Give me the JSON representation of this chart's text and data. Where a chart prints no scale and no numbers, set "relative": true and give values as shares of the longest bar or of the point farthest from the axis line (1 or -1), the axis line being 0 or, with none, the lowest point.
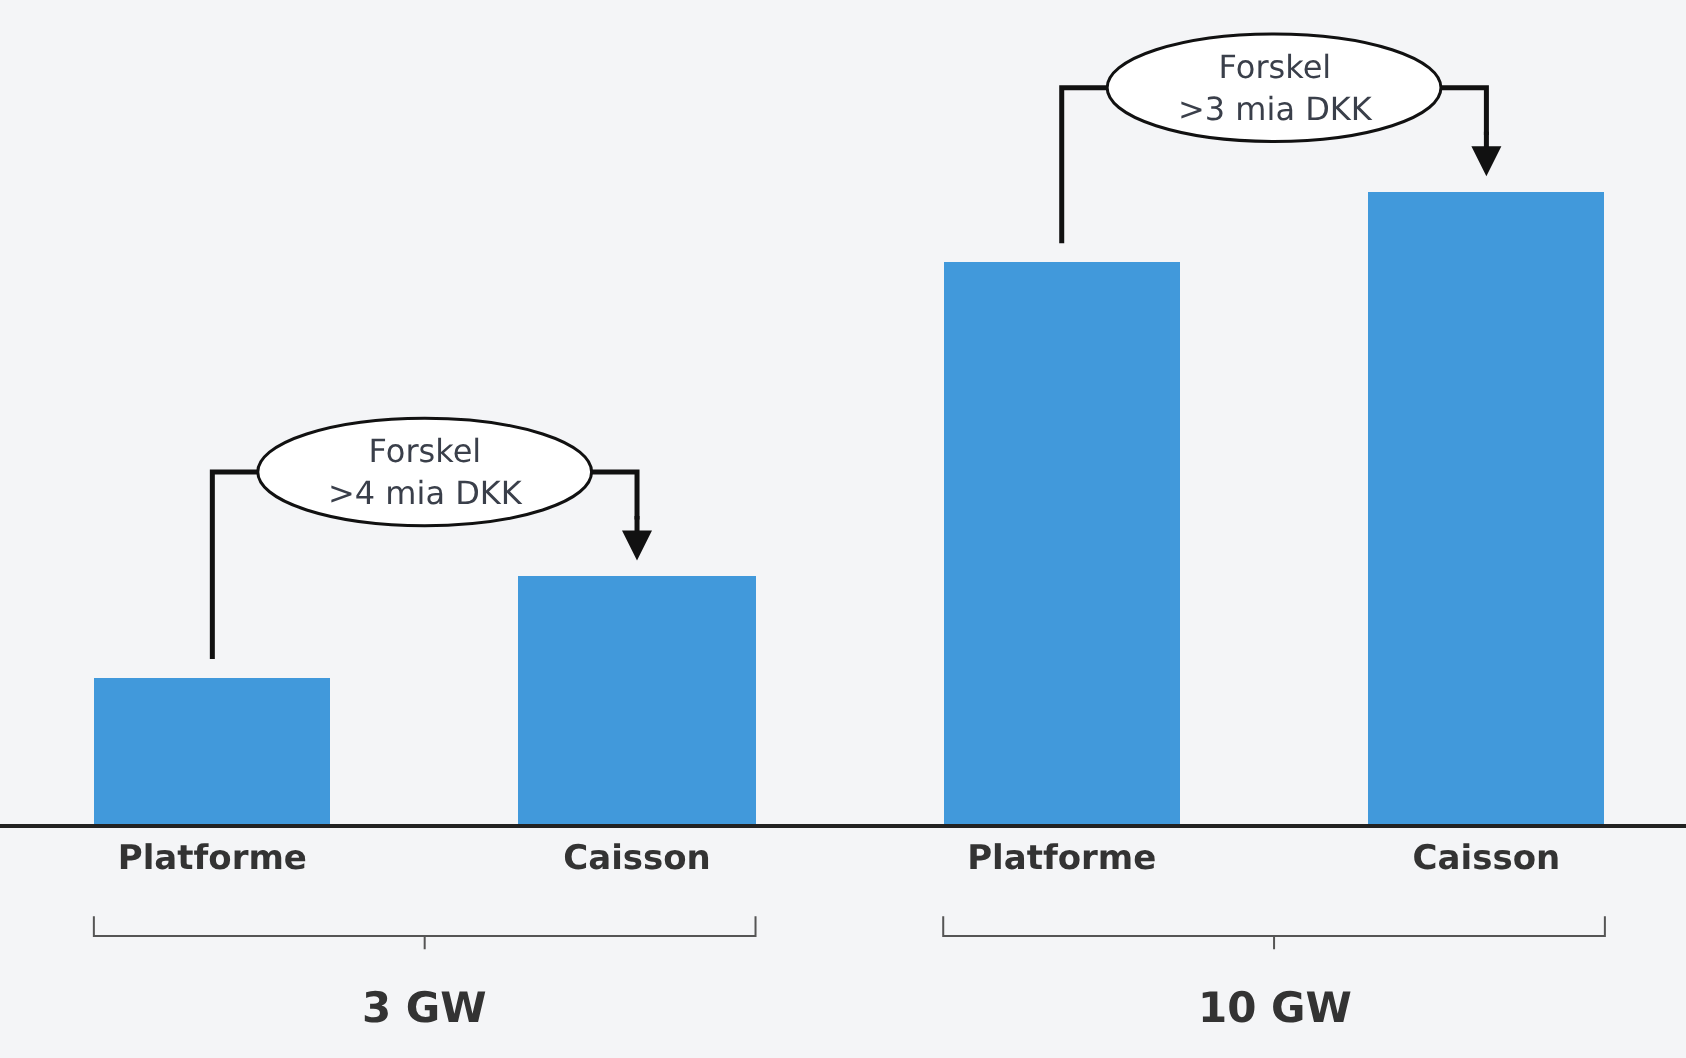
{
  "chart_data": {
    "type": "bar",
    "relative": true,
    "categories": [
      "Platforme",
      "Caisson",
      "Platforme",
      "Caisson"
    ],
    "values": [
      0.231,
      0.392,
      0.889,
      1.0
    ],
    "color": "#4199db",
    "annotations": [
      "Forskel\n>4 mia DKK",
      "Forskel\n>3 mia DKK",
      "3 GW",
      "10 GW"
    ],
    "grid": false
  }
}
